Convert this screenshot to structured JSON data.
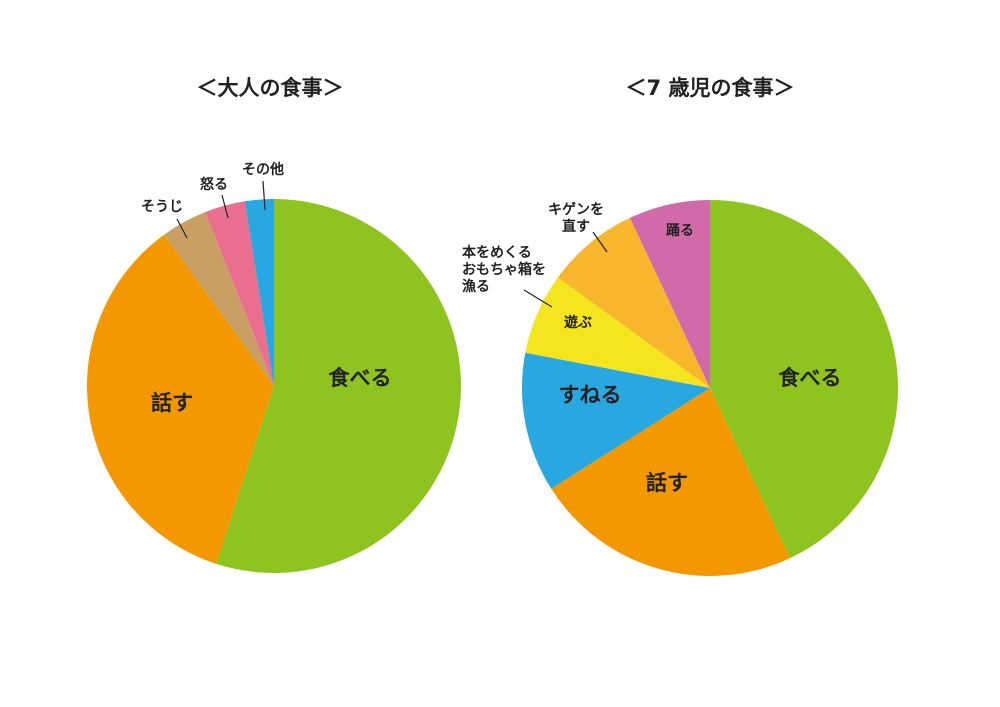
{
  "chart_data": [
    {
      "type": "pie",
      "title": "＜大人の食事＞",
      "start": "12 o'clock",
      "direction": "clockwise",
      "slices": [
        {
          "label": [
            "食べる"
          ],
          "value": 55,
          "color": "#8fc31f"
        },
        {
          "label": [
            "話す"
          ],
          "value": 35,
          "color": "#f39800"
        },
        {
          "label": [
            "そうじ"
          ],
          "value": 4,
          "color": "#c9a063"
        },
        {
          "label": [
            "怒る"
          ],
          "value": 3.5,
          "color": "#ea6f8f"
        },
        {
          "label": [
            "その他"
          ],
          "value": 2.5,
          "color": "#29a7e1"
        }
      ]
    },
    {
      "type": "pie",
      "title": "＜7 歳児の食事＞",
      "start": "12 o'clock",
      "direction": "clockwise",
      "slices": [
        {
          "label": [
            "食べる"
          ],
          "value": 43,
          "color": "#8fc31f"
        },
        {
          "label": [
            "話す"
          ],
          "value": 23,
          "color": "#f39800"
        },
        {
          "label": [
            "すねる"
          ],
          "value": 12,
          "color": "#29a7e1"
        },
        {
          "label": [
            "遊ぶ"
          ],
          "value": 7,
          "color": "#f5e51f"
        },
        {
          "label": [
            "本をめくる",
            "おもちゃ箱を",
            "漁る"
          ],
          "value": 0,
          "color": "#f5e51f"
        },
        {
          "label": [
            "キゲンを",
            "直す"
          ],
          "value": 8,
          "color": "#f8b62d"
        },
        {
          "label": [
            "踊る"
          ],
          "value": 7,
          "color": "#d16aa8"
        }
      ]
    }
  ]
}
